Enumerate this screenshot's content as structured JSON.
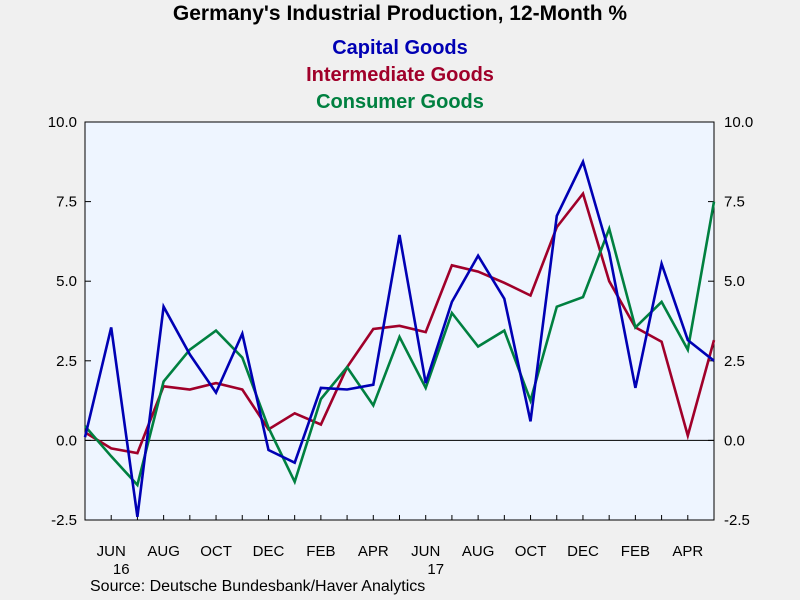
{
  "chart_data": {
    "type": "line",
    "title": "Germany's Industrial Production, 12-Month %",
    "source": "Source:  Deutsche Bundesbank/Haver Analytics",
    "ylim": [
      -2.5,
      10.0
    ],
    "y_ticks": [
      "10.0",
      "7.5",
      "5.0",
      "2.5",
      "0.0",
      "-2.5"
    ],
    "y_tick_values": [
      10.0,
      7.5,
      5.0,
      2.5,
      0.0,
      -2.5
    ],
    "x_tick_labels": [
      "JUN",
      "AUG",
      "OCT",
      "DEC",
      "FEB",
      "APR",
      "JUN",
      "AUG",
      "OCT",
      "DEC",
      "FEB",
      "APR"
    ],
    "x_tick_index": [
      1,
      3,
      5,
      7,
      9,
      11,
      13,
      15,
      17,
      19,
      21,
      23
    ],
    "year_labels": [
      "16",
      "17"
    ],
    "year_label_index": [
      1,
      13
    ],
    "x": [
      "2016-05",
      "2016-06",
      "2016-07",
      "2016-08",
      "2016-09",
      "2016-10",
      "2016-11",
      "2016-12",
      "2017-01",
      "2017-02",
      "2017-03",
      "2017-04",
      "2017-05",
      "2017-06",
      "2017-07",
      "2017-08",
      "2017-09",
      "2017-10",
      "2017-11",
      "2017-12",
      "2018-01",
      "2018-02",
      "2018-03",
      "2018-04",
      "2018-05"
    ],
    "grid": false,
    "zero_line": true,
    "legend_position": "top-center",
    "series": [
      {
        "name": "Capital Goods",
        "color": "#0000b4",
        "values": [
          0.1,
          3.55,
          -2.4,
          4.2,
          2.7,
          1.5,
          3.35,
          -0.3,
          -0.7,
          1.65,
          1.6,
          1.75,
          6.45,
          1.8,
          4.35,
          5.8,
          4.45,
          0.6,
          7.05,
          8.75,
          5.9,
          1.65,
          5.55,
          3.15,
          2.5
        ]
      },
      {
        "name": "Intermediate Goods",
        "color": "#a0002a",
        "values": [
          0.25,
          -0.25,
          -0.4,
          1.7,
          1.6,
          1.8,
          1.6,
          0.35,
          0.85,
          0.5,
          2.3,
          3.5,
          3.6,
          3.4,
          5.5,
          5.3,
          4.95,
          4.55,
          6.7,
          7.75,
          5.0,
          3.55,
          3.1,
          0.15,
          3.15
        ]
      },
      {
        "name": "Consumer Goods",
        "color": "#008040",
        "values": [
          0.45,
          -0.5,
          -1.4,
          1.85,
          2.85,
          3.45,
          2.6,
          0.4,
          -1.3,
          1.3,
          2.3,
          1.1,
          3.25,
          1.65,
          4.0,
          2.95,
          3.45,
          1.25,
          4.2,
          4.5,
          6.65,
          3.55,
          4.35,
          2.85,
          7.5
        ]
      }
    ]
  }
}
